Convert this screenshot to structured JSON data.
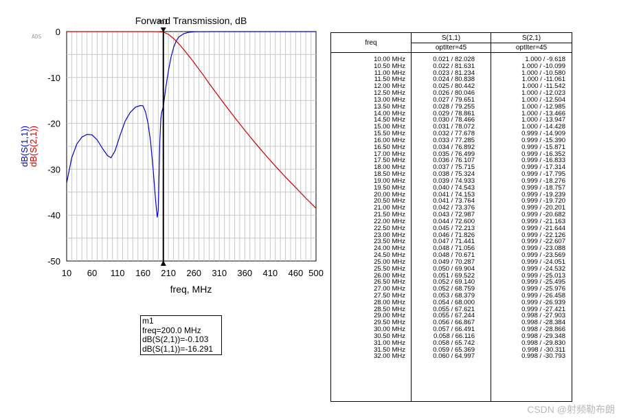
{
  "logo": "ADS",
  "chart_data": {
    "type": "line",
    "title": "Forward Transmission, dB",
    "xlabel": "freq, MHz",
    "ylabel_parts": [
      {
        "text": "dB(S(1,1))",
        "color": "#0000cc"
      },
      {
        "text": "dB(S(2,1))",
        "color": "#cc0000"
      }
    ],
    "xlim": [
      10,
      500
    ],
    "ylim": [
      -50,
      0
    ],
    "xticks": [
      10,
      60,
      110,
      160,
      210,
      260,
      310,
      360,
      410,
      460,
      500
    ],
    "yticks": [
      0,
      -10,
      -20,
      -30,
      -40,
      -50
    ],
    "grid": true,
    "series": [
      {
        "color": "#0000cc",
        "x": [
          10,
          20,
          30,
          40,
          50,
          60,
          70,
          80,
          90,
          97,
          105,
          115,
          125,
          135,
          145,
          155,
          160,
          165,
          170,
          175,
          180,
          185,
          188,
          190,
          191,
          193,
          195,
          197,
          200,
          205,
          210,
          215,
          220,
          225,
          230,
          240,
          250,
          260,
          270,
          280,
          300,
          350,
          400,
          450,
          500
        ],
        "y": [
          -33,
          -27.5,
          -24.5,
          -23,
          -22.4,
          -22.5,
          -23.6,
          -25.4,
          -27,
          -27.5,
          -26,
          -22.6,
          -19.5,
          -17.6,
          -16.5,
          -16.1,
          -16.2,
          -17.5,
          -20,
          -24,
          -30,
          -37,
          -40.5,
          -39,
          -34,
          -24,
          -19,
          -17.5,
          -16.3,
          -12,
          -8.5,
          -5.6,
          -3.5,
          -2.1,
          -1.2,
          -0.45,
          -0.15,
          -0.05,
          -0.02,
          -0.01,
          0,
          0,
          0,
          0,
          0
        ]
      },
      {
        "color": "#cc0000",
        "x": [
          10,
          100,
          150,
          175,
          190,
          200,
          210,
          220,
          230,
          240,
          250,
          260,
          270,
          280,
          290,
          300,
          320,
          340,
          360,
          380,
          400,
          420,
          440,
          460,
          480,
          500
        ],
        "y": [
          0,
          0,
          0,
          0,
          -0.02,
          -0.103,
          -0.6,
          -1.5,
          -2.6,
          -3.9,
          -5.3,
          -6.7,
          -8.2,
          -9.7,
          -11.3,
          -12.8,
          -15.8,
          -18.7,
          -21.5,
          -24.2,
          -26.8,
          -29.3,
          -31.7,
          -34.0,
          -36.3,
          -38.5
        ]
      }
    ],
    "marker": {
      "name": "m1",
      "x": 200
    }
  },
  "marker_readout": {
    "name": "m1",
    "freq": "freq=200.0 MHz",
    "s21": "dB(S(2,1))=-0.103",
    "s11": "dB(S(1,1))=-16.291"
  },
  "table": {
    "freq_header": "freq",
    "s11_header": "S(1,1)",
    "s11_sub": "optIter=45",
    "s21_header": "S(2,1)",
    "s21_sub": "optIter=45",
    "rows": [
      [
        "10.00 MHz",
        "0.021 / 82.028",
        "1.000 / -9.618"
      ],
      [
        "10.50 MHz",
        "0.022 / 81.631",
        "1.000 / -10.099"
      ],
      [
        "11.00 MHz",
        "0.023 / 81.234",
        "1.000 / -10.580"
      ],
      [
        "11.50 MHz",
        "0.024 / 80.838",
        "1.000 / -11.061"
      ],
      [
        "12.00 MHz",
        "0.025 / 80.442",
        "1.000 / -11.542"
      ],
      [
        "12.50 MHz",
        "0.026 / 80.046",
        "1.000 / -12.023"
      ],
      [
        "13.00 MHz",
        "0.027 / 79.651",
        "1.000 / -12.504"
      ],
      [
        "13.50 MHz",
        "0.028 / 79.255",
        "1.000 / -12.985"
      ],
      [
        "14.00 MHz",
        "0.029 / 78.861",
        "1.000 / -13.466"
      ],
      [
        "14.50 MHz",
        "0.030 / 78.466",
        "1.000 / -13.947"
      ],
      [
        "15.00 MHz",
        "0.031 / 78.072",
        "1.000 / -14.428"
      ],
      [
        "15.50 MHz",
        "0.032 / 77.678",
        "0.999 / -14.909"
      ],
      [
        "16.00 MHz",
        "0.033 / 77.285",
        "0.999 / -15.390"
      ],
      [
        "16.50 MHz",
        "0.034 / 76.892",
        "0.999 / -15.871"
      ],
      [
        "17.00 MHz",
        "0.035 / 76.499",
        "0.999 / -16.352"
      ],
      [
        "17.50 MHz",
        "0.036 / 76.107",
        "0.999 / -16.833"
      ],
      [
        "18.00 MHz",
        "0.037 / 75.715",
        "0.999 / -17.314"
      ],
      [
        "18.50 MHz",
        "0.038 / 75.324",
        "0.999 / -17.795"
      ],
      [
        "19.00 MHz",
        "0.039 / 74.933",
        "0.999 / -18.276"
      ],
      [
        "19.50 MHz",
        "0.040 / 74.543",
        "0.999 / -18.757"
      ],
      [
        "20.00 MHz",
        "0.041 / 74.153",
        "0.999 / -19.239"
      ],
      [
        "20.50 MHz",
        "0.041 / 73.764",
        "0.999 / -19.720"
      ],
      [
        "21.00 MHz",
        "0.042 / 73.376",
        "0.999 / -20.201"
      ],
      [
        "21.50 MHz",
        "0.043 / 72.987",
        "0.999 / -20.682"
      ],
      [
        "22.00 MHz",
        "0.044 / 72.600",
        "0.999 / -21.163"
      ],
      [
        "22.50 MHz",
        "0.045 / 72.213",
        "0.999 / -21.644"
      ],
      [
        "23.00 MHz",
        "0.046 / 71.826",
        "0.999 / -22.126"
      ],
      [
        "23.50 MHz",
        "0.047 / 71.441",
        "0.999 / -22.607"
      ],
      [
        "24.00 MHz",
        "0.048 / 71.056",
        "0.999 / -23.088"
      ],
      [
        "24.50 MHz",
        "0.048 / 70.671",
        "0.999 / -23.569"
      ],
      [
        "25.00 MHz",
        "0.049 / 70.287",
        "0.999 / -24.051"
      ],
      [
        "25.50 MHz",
        "0.050 / 69.904",
        "0.999 / -24.532"
      ],
      [
        "26.00 MHz",
        "0.051 / 69.522",
        "0.999 / -25.013"
      ],
      [
        "26.50 MHz",
        "0.052 / 69.140",
        "0.999 / -25.495"
      ],
      [
        "27.00 MHz",
        "0.052 / 68.759",
        "0.999 / -25.976"
      ],
      [
        "27.50 MHz",
        "0.053 / 68.379",
        "0.999 / -26.458"
      ],
      [
        "28.00 MHz",
        "0.054 / 68.000",
        "0.999 / -26.939"
      ],
      [
        "28.50 MHz",
        "0.055 / 67.621",
        "0.999 / -27.421"
      ],
      [
        "29.00 MHz",
        "0.055 / 67.244",
        "0.998 / -27.903"
      ],
      [
        "29.50 MHz",
        "0.056 / 66.867",
        "0.998 / -28.384"
      ],
      [
        "30.00 MHz",
        "0.057 / 66.491",
        "0.998 / -28.866"
      ],
      [
        "30.50 MHz",
        "0.058 / 66.116",
        "0.998 / -29.348"
      ],
      [
        "31.00 MHz",
        "0.058 / 65.742",
        "0.998 / -29.830"
      ],
      [
        "31.50 MHz",
        "0.059 / 65.369",
        "0.998 / -30.311"
      ],
      [
        "32.00 MHz",
        "0.060 / 64.997",
        "0.998 / -30.793"
      ]
    ]
  },
  "watermark": "CSDN @射频勒布朗"
}
